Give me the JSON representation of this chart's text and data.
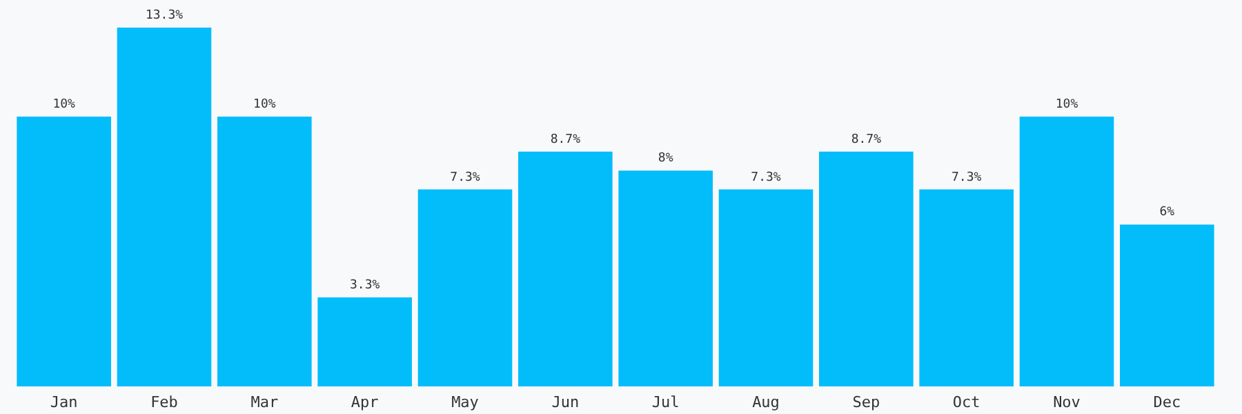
{
  "chart_data": {
    "type": "bar",
    "categories": [
      "Jan",
      "Feb",
      "Mar",
      "Apr",
      "May",
      "Jun",
      "Jul",
      "Aug",
      "Sep",
      "Oct",
      "Nov",
      "Dec"
    ],
    "values": [
      10,
      13.3,
      10,
      3.3,
      7.3,
      8.7,
      8,
      7.3,
      8.7,
      7.3,
      10,
      6
    ],
    "value_labels": [
      "10%",
      "13.3%",
      "10%",
      "3.3%",
      "7.3%",
      "8.7%",
      "8%",
      "7.3%",
      "8.7%",
      "7.3%",
      "10%",
      "6%"
    ],
    "color": "#03bdfb"
  }
}
